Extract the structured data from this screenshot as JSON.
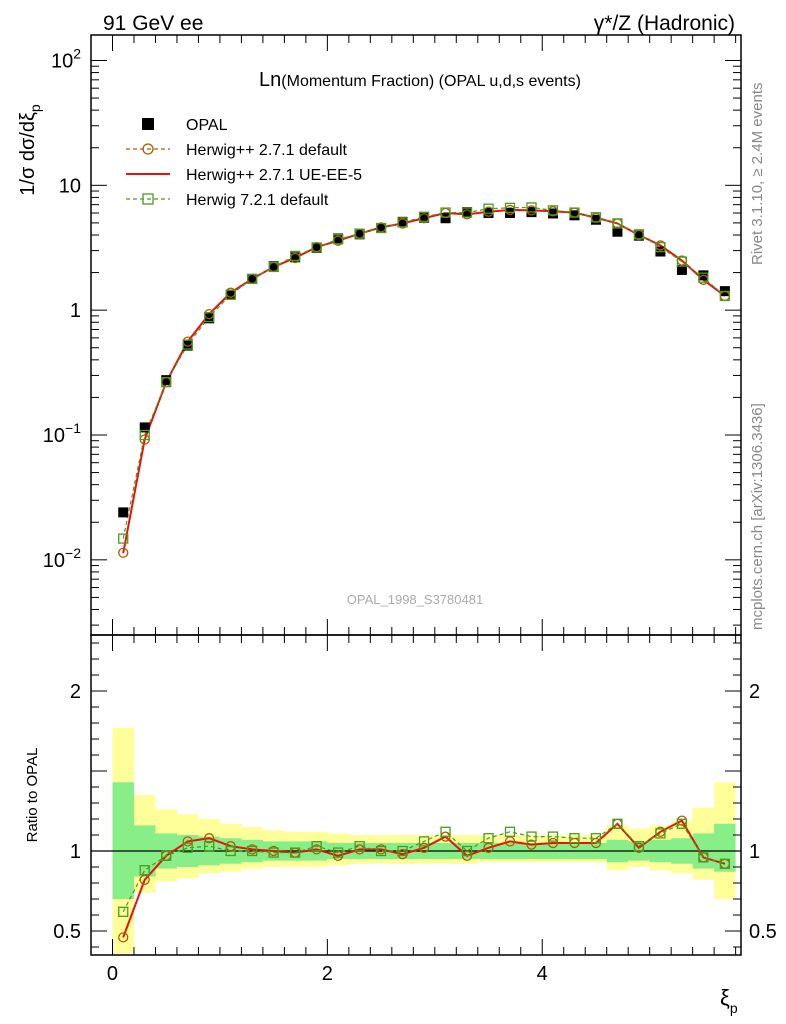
{
  "header": {
    "left": "91 GeV ee",
    "right": "γ*/Z (Hadronic)"
  },
  "side_text": {
    "rivet": "Rivet 3.1.10, ≥ 2.4M events",
    "mcplots": "mcplots.cern.ch [arXiv:1306.3436]"
  },
  "watermark": "OPAL_1998_S3780481",
  "chart_data": [
    {
      "type": "scatter",
      "title": "Ln(Momentum Fraction) (OPAL u,d,s events)",
      "title_prefix": "Ln",
      "title_rest": "(Momentum Fraction) (OPAL u,d,s events)",
      "ylabel": "1/σ dσ/dξ_p",
      "ylabel_main": "1/σ dσ/dξ",
      "ylabel_sub": "p",
      "yscale": "log",
      "ylim": [
        0.0025,
        160
      ],
      "xlim": [
        -0.2,
        5.85
      ],
      "ytick_labels": [
        "10^-2",
        "10^-1",
        "1",
        "10",
        "10^2"
      ],
      "legend_position": "top-left",
      "x": [
        0.1,
        0.3,
        0.5,
        0.7,
        0.9,
        1.1,
        1.3,
        1.5,
        1.7,
        1.9,
        2.1,
        2.3,
        2.5,
        2.7,
        2.9,
        3.1,
        3.3,
        3.5,
        3.7,
        3.9,
        4.1,
        4.3,
        4.5,
        4.7,
        4.9,
        5.1,
        5.3,
        5.5,
        5.7
      ],
      "series": [
        {
          "name": "OPAL",
          "color": "#000000",
          "marker": "filled-square",
          "values": [
            0.024,
            0.115,
            0.275,
            0.52,
            0.86,
            1.33,
            1.78,
            2.25,
            2.65,
            3.15,
            3.75,
            4.05,
            4.55,
            5.1,
            5.5,
            5.45,
            6.1,
            6.0,
            6.0,
            6.1,
            5.95,
            5.75,
            5.3,
            4.25,
            3.95,
            2.95,
            2.1,
            1.9,
            1.42
          ]
        },
        {
          "name": "Herwig++ 2.7.1 default",
          "color": "#b05a00",
          "marker": "open-circle",
          "line": "dashed",
          "values": [
            0.0114,
            0.092,
            0.265,
            0.56,
            0.93,
            1.38,
            1.78,
            2.22,
            2.62,
            3.2,
            3.6,
            4.1,
            4.6,
            4.95,
            5.45,
            6.0,
            5.85,
            6.15,
            6.35,
            6.3,
            6.2,
            6.05,
            5.5,
            4.95,
            4.0,
            3.3,
            2.5,
            1.75,
            1.3
          ]
        },
        {
          "name": "Herwig++ 2.7.1 UE-EE-5",
          "color": "#e8120b",
          "marker": "none",
          "line": "solid",
          "values": [
            0.0113,
            0.092,
            0.265,
            0.56,
            0.93,
            1.38,
            1.78,
            2.22,
            2.62,
            3.2,
            3.6,
            4.1,
            4.6,
            4.95,
            5.45,
            6.0,
            5.85,
            6.15,
            6.35,
            6.3,
            6.2,
            6.05,
            5.5,
            4.95,
            4.0,
            3.3,
            2.5,
            1.75,
            1.3
          ]
        },
        {
          "name": "Herwig 7.2.1 default",
          "color": "#4a9b1e",
          "marker": "open-square",
          "line": "dashed",
          "values": [
            0.0148,
            0.1,
            0.265,
            0.53,
            0.88,
            1.33,
            1.78,
            2.22,
            2.72,
            3.18,
            3.7,
            4.1,
            4.55,
            5.05,
            5.6,
            6.05,
            6.05,
            6.5,
            6.6,
            6.65,
            6.3,
            6.05,
            5.55,
            4.95,
            4.05,
            3.2,
            2.45,
            1.82,
            1.3
          ]
        }
      ]
    },
    {
      "type": "line",
      "ylabel": "Ratio to OPAL",
      "xlabel": "ξ_p",
      "xlabel_main": "ξ",
      "xlabel_sub": "p",
      "ylim": [
        0.35,
        2.35
      ],
      "xlim": [
        -0.2,
        5.85
      ],
      "yticks": [
        0.5,
        1,
        2
      ],
      "ytick_labels": [
        "0.5",
        "1",
        "2"
      ],
      "xticks": [
        0,
        2,
        4
      ],
      "xtick_labels": [
        "0",
        "2",
        "4"
      ],
      "reference_line": 1,
      "x": [
        0.1,
        0.3,
        0.5,
        0.7,
        0.9,
        1.1,
        1.3,
        1.5,
        1.7,
        1.9,
        2.1,
        2.3,
        2.5,
        2.7,
        2.9,
        3.1,
        3.3,
        3.5,
        3.7,
        3.9,
        4.1,
        4.3,
        4.5,
        4.7,
        4.9,
        5.1,
        5.3,
        5.5,
        5.7
      ],
      "band_1sigma": {
        "color": "#88ee88",
        "lower": [
          0.7,
          0.84,
          0.89,
          0.9,
          0.91,
          0.92,
          0.93,
          0.94,
          0.94,
          0.94,
          0.95,
          0.95,
          0.95,
          0.95,
          0.95,
          0.95,
          0.95,
          0.95,
          0.95,
          0.95,
          0.95,
          0.95,
          0.95,
          0.93,
          0.94,
          0.93,
          0.92,
          0.89,
          0.87
        ],
        "upper": [
          1.43,
          1.16,
          1.11,
          1.1,
          1.09,
          1.08,
          1.07,
          1.06,
          1.06,
          1.06,
          1.05,
          1.05,
          1.05,
          1.05,
          1.05,
          1.05,
          1.05,
          1.05,
          1.05,
          1.05,
          1.05,
          1.05,
          1.05,
          1.07,
          1.06,
          1.07,
          1.08,
          1.11,
          1.17
        ]
      },
      "band_2sigma": {
        "color": "#ffff99",
        "lower": [
          0.36,
          0.74,
          0.81,
          0.83,
          0.86,
          0.87,
          0.89,
          0.9,
          0.9,
          0.9,
          0.91,
          0.92,
          0.92,
          0.92,
          0.92,
          0.92,
          0.92,
          0.93,
          0.93,
          0.93,
          0.93,
          0.93,
          0.93,
          0.88,
          0.9,
          0.88,
          0.86,
          0.82,
          0.7
        ],
        "upper": [
          1.77,
          1.35,
          1.26,
          1.23,
          1.2,
          1.17,
          1.15,
          1.13,
          1.12,
          1.12,
          1.11,
          1.1,
          1.1,
          1.1,
          1.1,
          1.1,
          1.1,
          1.1,
          1.1,
          1.1,
          1.1,
          1.1,
          1.1,
          1.16,
          1.14,
          1.16,
          1.19,
          1.27,
          1.43
        ]
      },
      "series": [
        {
          "name": "Herwig++ 2.7.1 default",
          "color": "#b05a00",
          "marker": "open-circle",
          "line": "dashed",
          "values": [
            0.46,
            0.82,
            0.97,
            1.06,
            1.08,
            1.03,
            1.01,
            1.0,
            0.99,
            1.01,
            0.97,
            1.01,
            1.01,
            0.98,
            1.02,
            1.09,
            0.97,
            1.02,
            1.06,
            1.04,
            1.05,
            1.05,
            1.05,
            1.17,
            1.02,
            1.12,
            1.19,
            0.96,
            0.92
          ]
        },
        {
          "name": "Herwig++ 2.7.1 UE-EE-5",
          "color": "#e8120b",
          "marker": "none",
          "line": "solid",
          "values": [
            0.46,
            0.82,
            0.97,
            1.06,
            1.08,
            1.03,
            1.01,
            1.0,
            0.99,
            1.01,
            0.97,
            1.01,
            1.01,
            0.98,
            1.02,
            1.09,
            0.97,
            1.02,
            1.06,
            1.04,
            1.05,
            1.05,
            1.05,
            1.17,
            1.02,
            1.12,
            1.19,
            0.96,
            0.92
          ]
        },
        {
          "name": "Herwig 7.2.1 default",
          "color": "#4a9b1e",
          "marker": "open-square",
          "line": "dashed",
          "values": [
            0.62,
            0.88,
            0.97,
            1.02,
            1.03,
            1.0,
            1.0,
            0.99,
            0.99,
            1.03,
            0.99,
            1.03,
            1.0,
            1.0,
            1.06,
            1.12,
            1.0,
            1.08,
            1.12,
            1.09,
            1.09,
            1.08,
            1.08,
            1.17,
            1.03,
            1.11,
            1.17,
            0.96,
            0.92
          ]
        }
      ]
    }
  ]
}
